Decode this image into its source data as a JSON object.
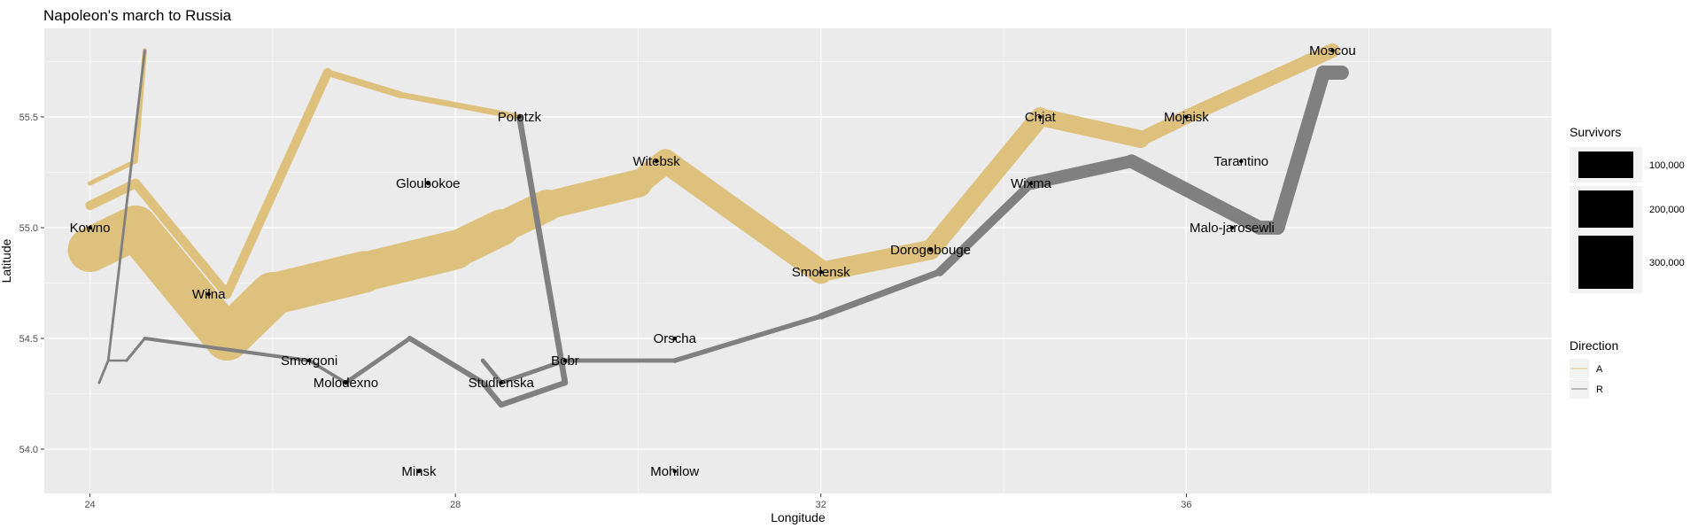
{
  "chart_data": {
    "type": "line",
    "title": "Napoleon's march to Russia",
    "xlabel": "Longitude",
    "ylabel": "Latitude",
    "xlim": [
      23.5,
      40.0
    ],
    "ylim": [
      53.8,
      55.9
    ],
    "x_ticks": [
      24,
      28,
      32,
      36
    ],
    "x_tick_labels": [
      "24",
      "28",
      "32",
      "36"
    ],
    "y_ticks": [
      54.0,
      54.5,
      55.0,
      55.5
    ],
    "y_tick_labels": [
      "54.0",
      "54.5",
      "55.0",
      "55.5"
    ],
    "grid": true,
    "colors": {
      "A": "#dfc17e",
      "R": "#808080",
      "panel": "#ebebeb",
      "grid_major": "#ffffff"
    },
    "survivors_legend": {
      "title": "Survivors",
      "entries": [
        {
          "value": 100000,
          "label": "100,000"
        },
        {
          "value": 200000,
          "label": "200,000"
        },
        {
          "value": 300000,
          "label": "300,000"
        }
      ]
    },
    "direction_legend": {
      "title": "Direction",
      "entries": [
        {
          "key": "A",
          "label": "A"
        },
        {
          "key": "R",
          "label": "R"
        }
      ]
    },
    "troops": [
      {
        "direction": "A",
        "group": 1,
        "points": [
          {
            "lon": 24.0,
            "lat": 54.9,
            "survivors": 340000
          },
          {
            "lon": 24.5,
            "lat": 55.0,
            "survivors": 340000
          },
          {
            "lon": 25.5,
            "lat": 54.5,
            "survivors": 340000
          },
          {
            "lon": 26.0,
            "lat": 54.7,
            "survivors": 320000
          },
          {
            "lon": 27.0,
            "lat": 54.8,
            "survivors": 300000
          },
          {
            "lon": 28.0,
            "lat": 54.9,
            "survivors": 280000
          },
          {
            "lon": 28.5,
            "lat": 55.0,
            "survivors": 240000
          },
          {
            "lon": 29.0,
            "lat": 55.1,
            "survivors": 210000
          },
          {
            "lon": 30.0,
            "lat": 55.2,
            "survivors": 180000
          },
          {
            "lon": 30.3,
            "lat": 55.3,
            "survivors": 175000
          },
          {
            "lon": 32.0,
            "lat": 54.8,
            "survivors": 145000
          },
          {
            "lon": 33.2,
            "lat": 54.9,
            "survivors": 140000
          },
          {
            "lon": 34.4,
            "lat": 55.5,
            "survivors": 127100
          },
          {
            "lon": 35.5,
            "lat": 55.4,
            "survivors": 100000
          },
          {
            "lon": 36.0,
            "lat": 55.5,
            "survivors": 100000
          },
          {
            "lon": 37.6,
            "lat": 55.8,
            "survivors": 100000
          }
        ]
      },
      {
        "direction": "R",
        "group": 1,
        "points": [
          {
            "lon": 37.7,
            "lat": 55.7,
            "survivors": 100000
          },
          {
            "lon": 37.5,
            "lat": 55.7,
            "survivors": 98000
          },
          {
            "lon": 37.0,
            "lat": 55.0,
            "survivors": 97000
          },
          {
            "lon": 36.8,
            "lat": 55.0,
            "survivors": 96000
          },
          {
            "lon": 35.4,
            "lat": 55.3,
            "survivors": 87000
          },
          {
            "lon": 34.3,
            "lat": 55.2,
            "survivors": 55000
          },
          {
            "lon": 33.3,
            "lat": 54.8,
            "survivors": 37000
          },
          {
            "lon": 32.0,
            "lat": 54.6,
            "survivors": 24000
          },
          {
            "lon": 30.4,
            "lat": 54.4,
            "survivors": 20000
          },
          {
            "lon": 29.2,
            "lat": 54.4,
            "survivors": 20000
          },
          {
            "lon": 28.5,
            "lat": 54.3,
            "survivors": 20000
          },
          {
            "lon": 28.3,
            "lat": 54.4,
            "survivors": 20000
          }
        ]
      },
      {
        "direction": "A",
        "group": 2,
        "points": [
          {
            "lon": 24.0,
            "lat": 55.1,
            "survivors": 60000
          },
          {
            "lon": 24.5,
            "lat": 55.2,
            "survivors": 60000
          },
          {
            "lon": 25.5,
            "lat": 54.7,
            "survivors": 60000
          },
          {
            "lon": 26.6,
            "lat": 55.7,
            "survivors": 40000
          },
          {
            "lon": 27.4,
            "lat": 55.6,
            "survivors": 33000
          },
          {
            "lon": 28.7,
            "lat": 55.5,
            "survivors": 33000
          }
        ]
      },
      {
        "direction": "R",
        "group": 2,
        "points": [
          {
            "lon": 28.7,
            "lat": 55.5,
            "survivors": 33000
          },
          {
            "lon": 29.2,
            "lat": 54.3,
            "survivors": 30000
          },
          {
            "lon": 28.5,
            "lat": 54.2,
            "survivors": 30000
          },
          {
            "lon": 28.3,
            "lat": 54.3,
            "survivors": 28000
          },
          {
            "lon": 27.5,
            "lat": 54.5,
            "survivors": 20000
          },
          {
            "lon": 26.8,
            "lat": 54.3,
            "survivors": 12000
          },
          {
            "lon": 26.4,
            "lat": 54.4,
            "survivors": 14000
          },
          {
            "lon": 24.6,
            "lat": 54.5,
            "survivors": 8000
          },
          {
            "lon": 24.4,
            "lat": 54.4,
            "survivors": 4000
          },
          {
            "lon": 24.2,
            "lat": 54.4,
            "survivors": 4000
          },
          {
            "lon": 24.1,
            "lat": 54.3,
            "survivors": 4000
          }
        ]
      },
      {
        "direction": "A",
        "group": 3,
        "points": [
          {
            "lon": 24.0,
            "lat": 55.2,
            "survivors": 22000
          },
          {
            "lon": 24.5,
            "lat": 55.3,
            "survivors": 22000
          },
          {
            "lon": 24.6,
            "lat": 55.8,
            "survivors": 6000
          }
        ]
      },
      {
        "direction": "R",
        "group": 3,
        "points": [
          {
            "lon": 24.6,
            "lat": 55.8,
            "survivors": 6000
          },
          {
            "lon": 24.2,
            "lat": 54.4,
            "survivors": 6000
          },
          {
            "lon": 24.1,
            "lat": 54.3,
            "survivors": 6000
          }
        ]
      }
    ],
    "cities": [
      {
        "name": "Kowno",
        "lon": 24.0,
        "lat": 55.0
      },
      {
        "name": "Wilna",
        "lon": 25.3,
        "lat": 54.7
      },
      {
        "name": "Smorgoni",
        "lon": 26.4,
        "lat": 54.4
      },
      {
        "name": "Molodexno",
        "lon": 26.8,
        "lat": 54.3
      },
      {
        "name": "Gloubokoe",
        "lon": 27.7,
        "lat": 55.2
      },
      {
        "name": "Minsk",
        "lon": 27.6,
        "lat": 53.9
      },
      {
        "name": "Studienska",
        "lon": 28.5,
        "lat": 54.3
      },
      {
        "name": "Polotzk",
        "lon": 28.7,
        "lat": 55.5
      },
      {
        "name": "Bobr",
        "lon": 29.2,
        "lat": 54.4
      },
      {
        "name": "Witebsk",
        "lon": 30.2,
        "lat": 55.3
      },
      {
        "name": "Orscha",
        "lon": 30.4,
        "lat": 54.5
      },
      {
        "name": "Mohilow",
        "lon": 30.4,
        "lat": 53.9
      },
      {
        "name": "Smolensk",
        "lon": 32.0,
        "lat": 54.8
      },
      {
        "name": "Dorogobouge",
        "lon": 33.2,
        "lat": 54.9
      },
      {
        "name": "Wixma",
        "lon": 34.3,
        "lat": 55.2
      },
      {
        "name": "Chjat",
        "lon": 34.4,
        "lat": 55.5
      },
      {
        "name": "Mojaisk",
        "lon": 36.0,
        "lat": 55.5
      },
      {
        "name": "Moscou",
        "lon": 37.6,
        "lat": 55.8
      },
      {
        "name": "Tarantino",
        "lon": 36.6,
        "lat": 55.3
      },
      {
        "name": "Malo-jarosewli",
        "lon": 36.5,
        "lat": 55.0
      }
    ]
  }
}
